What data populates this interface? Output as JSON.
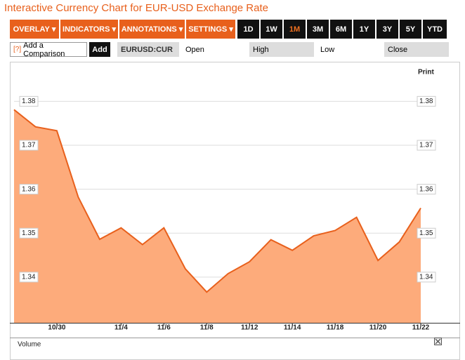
{
  "chart_data": {
    "type": "line",
    "title": "Interactive Currency Chart for EUR-USD Exchange Rate",
    "categories": [
      null,
      null,
      "10/30",
      null,
      null,
      "11/4",
      null,
      "11/6",
      null,
      "11/8",
      null,
      "11/12",
      null,
      "11/14",
      null,
      "11/18",
      null,
      "11/20",
      null,
      "11/22"
    ],
    "series": [
      {
        "name": "EURUSD:CUR",
        "color": "#e8601c",
        "values": [
          1.3781,
          1.3742,
          1.3733,
          1.3582,
          1.3486,
          1.3512,
          1.3474,
          1.3512,
          1.3419,
          1.3366,
          1.3408,
          1.3435,
          1.3485,
          1.3461,
          1.3494,
          1.3506,
          1.3536,
          1.3438,
          1.348,
          1.3557
        ]
      }
    ],
    "fill_color": "#fdab7b",
    "ylim": [
      1.33,
      1.389
    ],
    "yticks": [
      1.34,
      1.35,
      1.36,
      1.37,
      1.38
    ],
    "grid": true
  },
  "toolbar": {
    "menus": [
      "OVERLAY",
      "INDICATORS",
      "ANNOTATIONS",
      "SETTINGS"
    ],
    "ranges": [
      "1D",
      "1W",
      "1M",
      "3M",
      "6M",
      "1Y",
      "3Y",
      "5Y",
      "YTD"
    ]
  },
  "comparison": {
    "help": "[?]",
    "placeholder": "Add a Comparison",
    "button": "Add"
  },
  "fields": [
    "Open",
    "High",
    "Low",
    "Close"
  ],
  "print": "Print",
  "volume": "Volume"
}
